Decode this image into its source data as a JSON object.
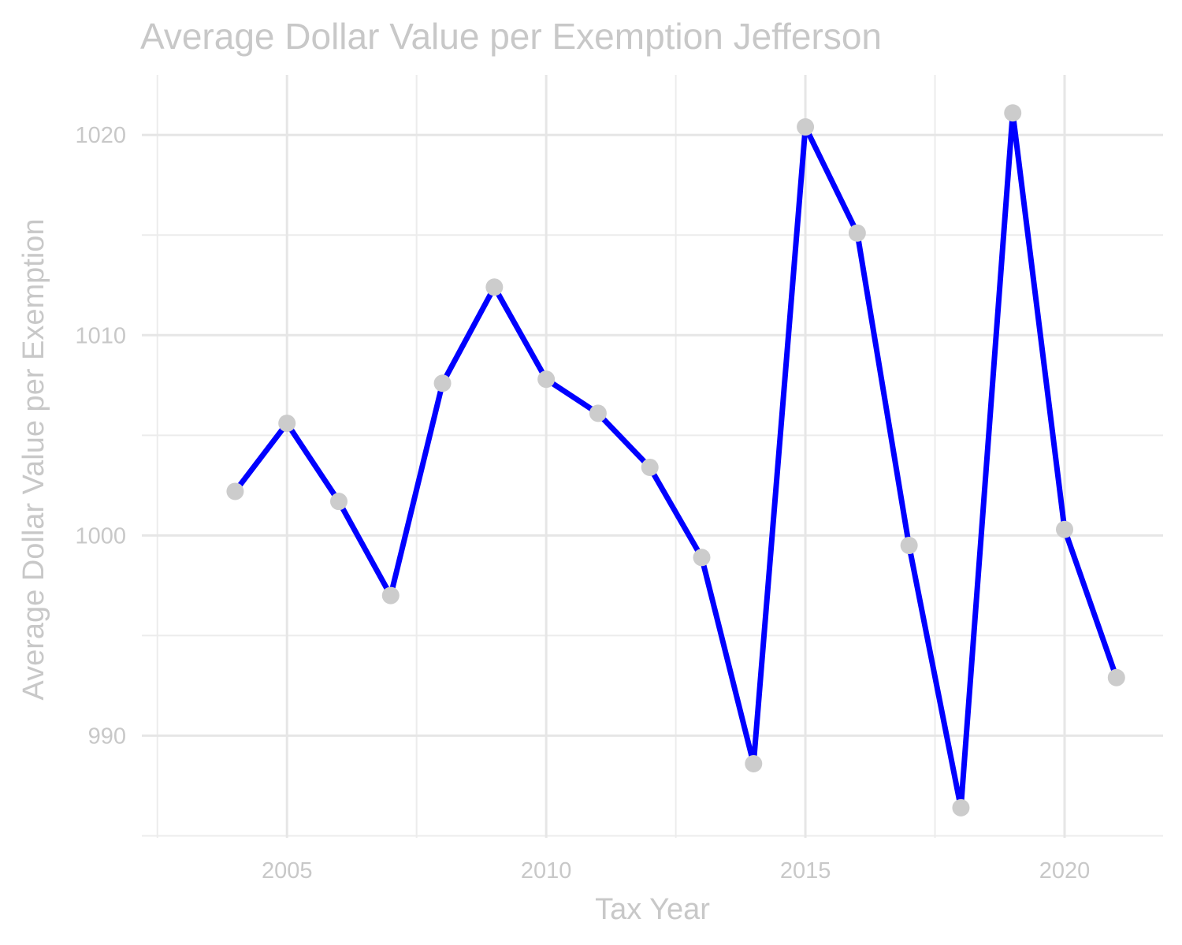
{
  "chart_data": {
    "type": "line",
    "title": "Average Dollar Value per Exemption Jefferson",
    "xlabel": "Tax Year",
    "ylabel": "Average Dollar Value per Exemption",
    "xlim": [
      2002.2,
      2021.9
    ],
    "ylim": [
      984.9,
      1023.0
    ],
    "x_ticks": [
      2005,
      2010,
      2015,
      2020
    ],
    "x_tick_labels": [
      "2005",
      "2010",
      "2015",
      "2020"
    ],
    "x_minor": [
      2002.5,
      2007.5,
      2012.5,
      2017.5
    ],
    "y_ticks": [
      990,
      1000,
      1010,
      1020
    ],
    "y_tick_labels": [
      "990",
      "1000",
      "1010",
      "1020"
    ],
    "y_minor": [
      985,
      995,
      1005,
      1015
    ],
    "grid": true,
    "legend": "none",
    "line_color": "#0000ff",
    "point_color": "#cccccc",
    "series": [
      {
        "x": [
          2004,
          2005,
          2006,
          2007,
          2008,
          2009,
          2010,
          2011,
          2012,
          2013,
          2014,
          2015,
          2016,
          2017,
          2018,
          2019,
          2020,
          2021
        ],
        "values": [
          1002.2,
          1005.6,
          1001.7,
          997.0,
          1007.6,
          1012.4,
          1007.8,
          1006.1,
          1003.4,
          998.9,
          988.6,
          1020.4,
          1015.1,
          999.5,
          986.4,
          1021.1,
          1000.3,
          992.9
        ]
      }
    ]
  }
}
